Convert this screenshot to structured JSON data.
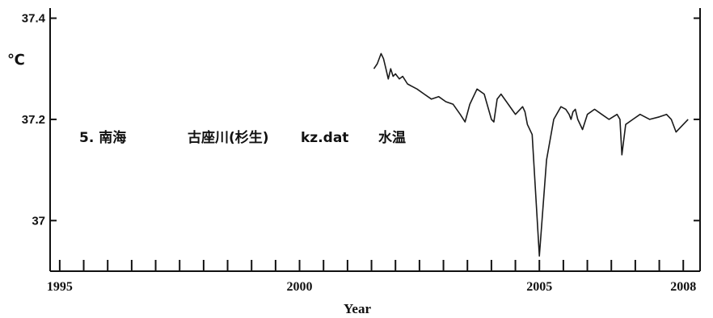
{
  "chart_data": {
    "type": "line",
    "title": "",
    "caption_parts": [
      "5. 南海",
      "古座川(杉生)",
      "kz.dat",
      "水温"
    ],
    "ylabel": "℃",
    "xlabel": "Year",
    "xlim": [
      1994.8,
      2008.35
    ],
    "ylim": [
      36.9,
      37.42
    ],
    "x_ticks": [
      1995,
      1995.5,
      1996,
      1996.5,
      1997,
      1997.5,
      1998,
      1998.5,
      1999,
      1999.5,
      2000,
      2000.5,
      2001,
      2001.5,
      2002,
      2002.5,
      2003,
      2003.5,
      2004,
      2004.5,
      2005,
      2005.5,
      2006,
      2006.5,
      2007,
      2007.5,
      2008
    ],
    "x_tick_labels": [
      {
        "value": 1995,
        "label": "1995"
      },
      {
        "value": 2000,
        "label": "2000"
      },
      {
        "value": 2005,
        "label": "2005"
      },
      {
        "value": 2008,
        "label": "2008"
      }
    ],
    "y_tick_labels": [
      {
        "value": 37.4,
        "label": "37.4"
      },
      {
        "value": 37.2,
        "label": "37.2"
      },
      {
        "value": 37.0,
        "label": "37"
      }
    ],
    "grid": false,
    "series": [
      {
        "x": [
          2001.55,
          2001.62,
          2001.7,
          2001.75,
          2001.8,
          2001.85,
          2001.9,
          2001.95,
          2002.0,
          2002.08,
          2002.15,
          2002.25,
          2002.35,
          2002.45,
          2002.6,
          2002.75,
          2002.9,
          2003.05,
          2003.2,
          2003.35,
          2003.45,
          2003.55,
          2003.7,
          2003.85,
          2004.0,
          2004.05,
          2004.12,
          2004.2,
          2004.35,
          2004.5,
          2004.65,
          2004.7,
          2004.75,
          2004.85,
          2005.0,
          2005.15,
          2005.3,
          2005.45,
          2005.55,
          2005.62,
          2005.66,
          2005.7,
          2005.75,
          2005.8,
          2005.9,
          2006.0,
          2006.15,
          2006.3,
          2006.45,
          2006.62,
          2006.68,
          2006.72,
          2006.8,
          2006.95,
          2007.1,
          2007.3,
          2007.5,
          2007.65,
          2007.75,
          2007.85,
          2008.0,
          2008.1
        ],
        "y": [
          37.3,
          37.31,
          37.33,
          37.32,
          37.3,
          37.28,
          37.3,
          37.285,
          37.29,
          37.28,
          37.285,
          37.27,
          37.265,
          37.26,
          37.25,
          37.24,
          37.245,
          37.235,
          37.23,
          37.21,
          37.195,
          37.23,
          37.26,
          37.25,
          37.2,
          37.195,
          37.24,
          37.25,
          37.23,
          37.21,
          37.225,
          37.215,
          37.19,
          37.17,
          36.93,
          37.12,
          37.2,
          37.225,
          37.22,
          37.21,
          37.2,
          37.215,
          37.22,
          37.2,
          37.18,
          37.21,
          37.22,
          37.21,
          37.2,
          37.21,
          37.2,
          37.13,
          37.19,
          37.2,
          37.21,
          37.2,
          37.205,
          37.21,
          37.2,
          37.175,
          37.19,
          37.2
        ]
      }
    ]
  }
}
